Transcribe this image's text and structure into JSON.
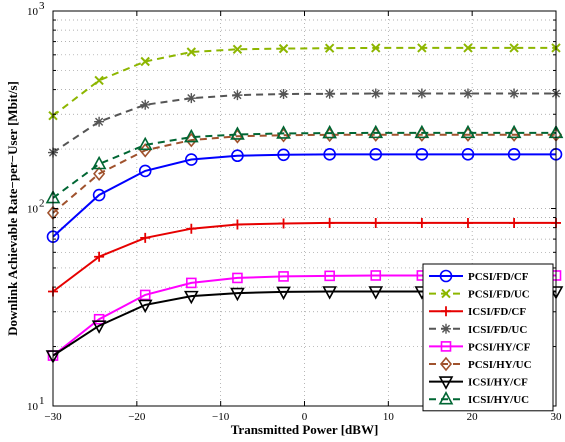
{
  "chart_data": {
    "type": "line",
    "title": "",
    "xlabel": "Transmitted Power [dBW]",
    "ylabel": "Downlink Achievable Rate−per−User [Mbit/s]",
    "xlim": [
      -30,
      30
    ],
    "ylim": [
      10,
      1000
    ],
    "yscale": "log",
    "grid": true,
    "legend_position": "bottom-right",
    "x_ticks": [
      -30,
      -20,
      -10,
      0,
      10,
      20,
      30
    ],
    "x_tick_labels": [
      "−30",
      "−20",
      "−10",
      "0",
      "10",
      "20",
      "30"
    ],
    "y_ticks": [
      10,
      100,
      1000
    ],
    "y_tick_labels": [
      {
        "base": "10",
        "exp": "1"
      },
      {
        "base": "10",
        "exp": "2"
      },
      {
        "base": "10",
        "exp": "3"
      }
    ],
    "x": [
      -30,
      -24.5,
      -19,
      -13.5,
      -8,
      -2.5,
      3,
      8.5,
      14,
      19.5,
      25,
      30
    ],
    "series": [
      {
        "name": "PCSI/FD/CF",
        "color": "#0000ff",
        "dash": "solid",
        "marker": "circle",
        "values": [
          72,
          117,
          155,
          177,
          185,
          187,
          188,
          188,
          188,
          188,
          188,
          188
        ]
      },
      {
        "name": "PCSI/FD/UC",
        "color": "#8db600",
        "dash": "dashed",
        "marker": "x",
        "values": [
          295,
          445,
          555,
          620,
          640,
          645,
          648,
          650,
          650,
          650,
          650,
          650
        ]
      },
      {
        "name": "ICSI/FD/CF",
        "color": "#e60000",
        "dash": "solid",
        "marker": "plus",
        "values": [
          38,
          57,
          71,
          79,
          83,
          84,
          84.5,
          84.5,
          84.5,
          84.5,
          84.5,
          84.5
        ]
      },
      {
        "name": "ICSI/FD/UC",
        "color": "#555555",
        "dash": "dashed",
        "marker": "star",
        "values": [
          192,
          275,
          335,
          362,
          375,
          380,
          381,
          382,
          382,
          382,
          382,
          382
        ]
      },
      {
        "name": "PCSI/HY/CF",
        "color": "#ff00ff",
        "dash": "solid",
        "marker": "square",
        "values": [
          18,
          27.5,
          36.5,
          42,
          44.5,
          45.3,
          45.6,
          45.8,
          45.8,
          45.8,
          45.8,
          45.8
        ]
      },
      {
        "name": "PCSI/HY/UC",
        "color": "#a0522d",
        "dash": "dashed",
        "marker": "diamond",
        "values": [
          95,
          150,
          197,
          222,
          232,
          235,
          236,
          236.5,
          236.5,
          236.5,
          236.5,
          236.5
        ]
      },
      {
        "name": "ICSI/HY/CF",
        "color": "#000000",
        "dash": "solid",
        "marker": "triangle-down",
        "values": [
          18,
          25.5,
          32.5,
          36,
          37.3,
          37.8,
          38,
          38,
          38,
          38,
          38,
          38
        ]
      },
      {
        "name": "ICSI/HY/UC",
        "color": "#006633",
        "dash": "dashed",
        "marker": "triangle-up",
        "values": [
          113,
          168,
          210,
          230,
          237,
          240,
          241,
          241.5,
          241.5,
          241.5,
          241.5,
          241.5
        ]
      }
    ]
  }
}
